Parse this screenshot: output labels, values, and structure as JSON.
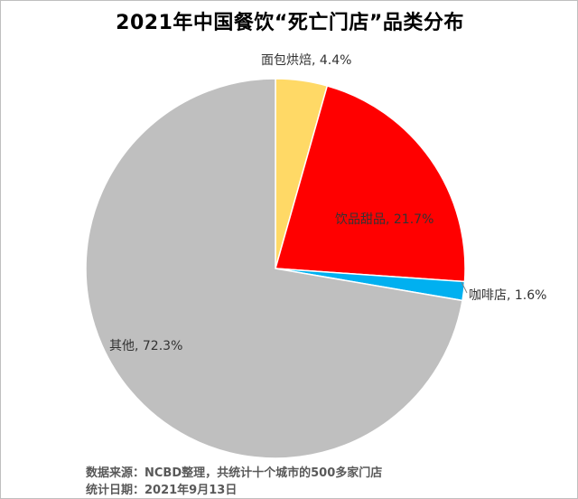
{
  "chart_data": {
    "type": "pie",
    "title": "2021年中国餐饮“死亡门店”品类分布",
    "slices": [
      {
        "label": "面包烘焙",
        "value": 4.4,
        "display": "面包烘焙, 4.4%",
        "color": "#FFD966"
      },
      {
        "label": "饮品甜品",
        "value": 21.7,
        "display": "饮品甜品, 21.7%",
        "color": "#FF0000"
      },
      {
        "label": "咖啡店",
        "value": 1.6,
        "display": "咖啡店, 1.6%",
        "color": "#00B0F0"
      },
      {
        "label": "其他",
        "value": 72.3,
        "display": "其他, 72.3%",
        "color": "#BFBFBF"
      }
    ],
    "start_angle_deg": 0,
    "direction": "clockwise",
    "legend": "none"
  },
  "footer": {
    "source": "数据来源：NCBD整理，共统计十个城市的500多家门店",
    "date": "统计日期：2021年9月13日"
  }
}
